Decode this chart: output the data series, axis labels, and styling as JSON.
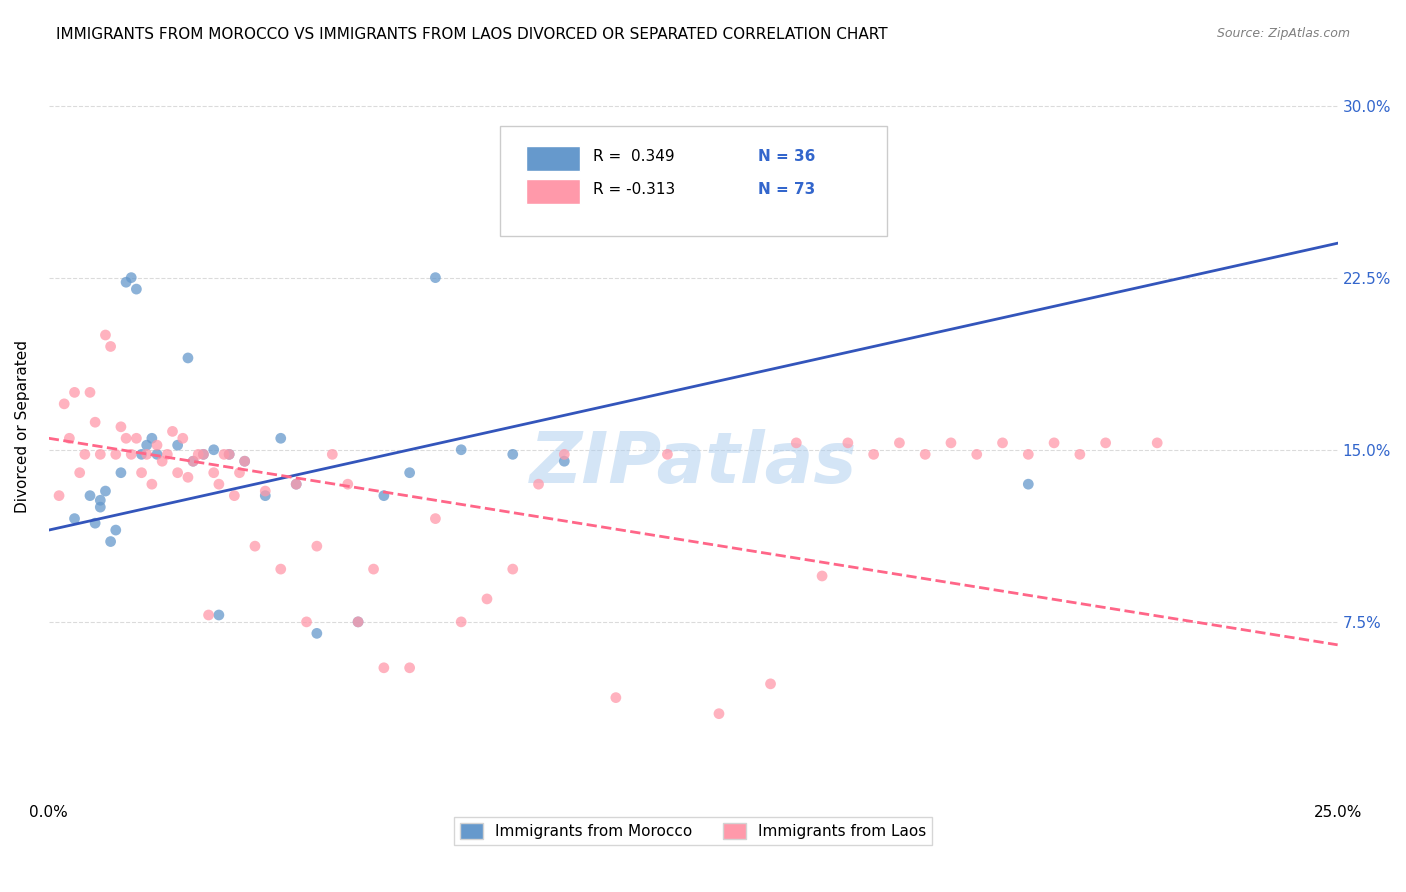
{
  "title": "IMMIGRANTS FROM MOROCCO VS IMMIGRANTS FROM LAOS DIVORCED OR SEPARATED CORRELATION CHART",
  "source": "Source: ZipAtlas.com",
  "ylabel_left": "Divorced or Separated",
  "legend_blue_label": "Immigrants from Morocco",
  "legend_pink_label": "Immigrants from Laos",
  "blue_R": "R =  0.349",
  "blue_N": "N = 36",
  "pink_R": "R = -0.313",
  "pink_N": "N = 73",
  "blue_color": "#6699CC",
  "pink_color": "#FF99AA",
  "blue_line_color": "#3355BB",
  "pink_line_color": "#FF6688",
  "watermark": "ZIPatlas",
  "blue_scatter_x": [
    0.005,
    0.008,
    0.009,
    0.01,
    0.01,
    0.011,
    0.012,
    0.013,
    0.014,
    0.015,
    0.016,
    0.017,
    0.018,
    0.019,
    0.02,
    0.021,
    0.025,
    0.027,
    0.028,
    0.03,
    0.032,
    0.033,
    0.035,
    0.038,
    0.042,
    0.045,
    0.048,
    0.052,
    0.06,
    0.065,
    0.07,
    0.075,
    0.08,
    0.09,
    0.1,
    0.19
  ],
  "blue_scatter_y": [
    0.12,
    0.13,
    0.118,
    0.125,
    0.128,
    0.132,
    0.11,
    0.115,
    0.14,
    0.223,
    0.225,
    0.22,
    0.148,
    0.152,
    0.155,
    0.148,
    0.152,
    0.19,
    0.145,
    0.148,
    0.15,
    0.078,
    0.148,
    0.145,
    0.13,
    0.155,
    0.135,
    0.07,
    0.075,
    0.13,
    0.14,
    0.225,
    0.15,
    0.148,
    0.145,
    0.135
  ],
  "pink_scatter_x": [
    0.002,
    0.003,
    0.004,
    0.005,
    0.006,
    0.007,
    0.008,
    0.009,
    0.01,
    0.011,
    0.012,
    0.013,
    0.014,
    0.015,
    0.016,
    0.017,
    0.018,
    0.019,
    0.02,
    0.021,
    0.022,
    0.023,
    0.024,
    0.025,
    0.026,
    0.027,
    0.028,
    0.029,
    0.03,
    0.031,
    0.032,
    0.033,
    0.034,
    0.035,
    0.036,
    0.037,
    0.038,
    0.04,
    0.042,
    0.045,
    0.048,
    0.05,
    0.052,
    0.055,
    0.058,
    0.06,
    0.063,
    0.065,
    0.07,
    0.075,
    0.08,
    0.085,
    0.09,
    0.095,
    0.1,
    0.11,
    0.12,
    0.13,
    0.14,
    0.15,
    0.16,
    0.17,
    0.18,
    0.19,
    0.2,
    0.145,
    0.155,
    0.165,
    0.175,
    0.185,
    0.195,
    0.205,
    0.215
  ],
  "pink_scatter_y": [
    0.13,
    0.17,
    0.155,
    0.175,
    0.14,
    0.148,
    0.175,
    0.162,
    0.148,
    0.2,
    0.195,
    0.148,
    0.16,
    0.155,
    0.148,
    0.155,
    0.14,
    0.148,
    0.135,
    0.152,
    0.145,
    0.148,
    0.158,
    0.14,
    0.155,
    0.138,
    0.145,
    0.148,
    0.148,
    0.078,
    0.14,
    0.135,
    0.148,
    0.148,
    0.13,
    0.14,
    0.145,
    0.108,
    0.132,
    0.098,
    0.135,
    0.075,
    0.108,
    0.148,
    0.135,
    0.075,
    0.098,
    0.055,
    0.055,
    0.12,
    0.075,
    0.085,
    0.098,
    0.135,
    0.148,
    0.042,
    0.148,
    0.035,
    0.048,
    0.095,
    0.148,
    0.148,
    0.148,
    0.148,
    0.148,
    0.153,
    0.153,
    0.153,
    0.153,
    0.153,
    0.153,
    0.153,
    0.153
  ],
  "xlim": [
    0.0,
    0.25
  ],
  "ylim": [
    0.0,
    0.32
  ],
  "blue_trend_x": [
    0.0,
    0.25
  ],
  "blue_trend_y": [
    0.115,
    0.24
  ],
  "pink_trend_x": [
    0.0,
    0.25
  ],
  "pink_trend_y": [
    0.155,
    0.065
  ],
  "background_color": "#FFFFFF",
  "grid_color": "#CCCCCC",
  "title_fontsize": 11,
  "axis_tick_color": "#3366CC",
  "watermark_color": "#AACCEE"
}
